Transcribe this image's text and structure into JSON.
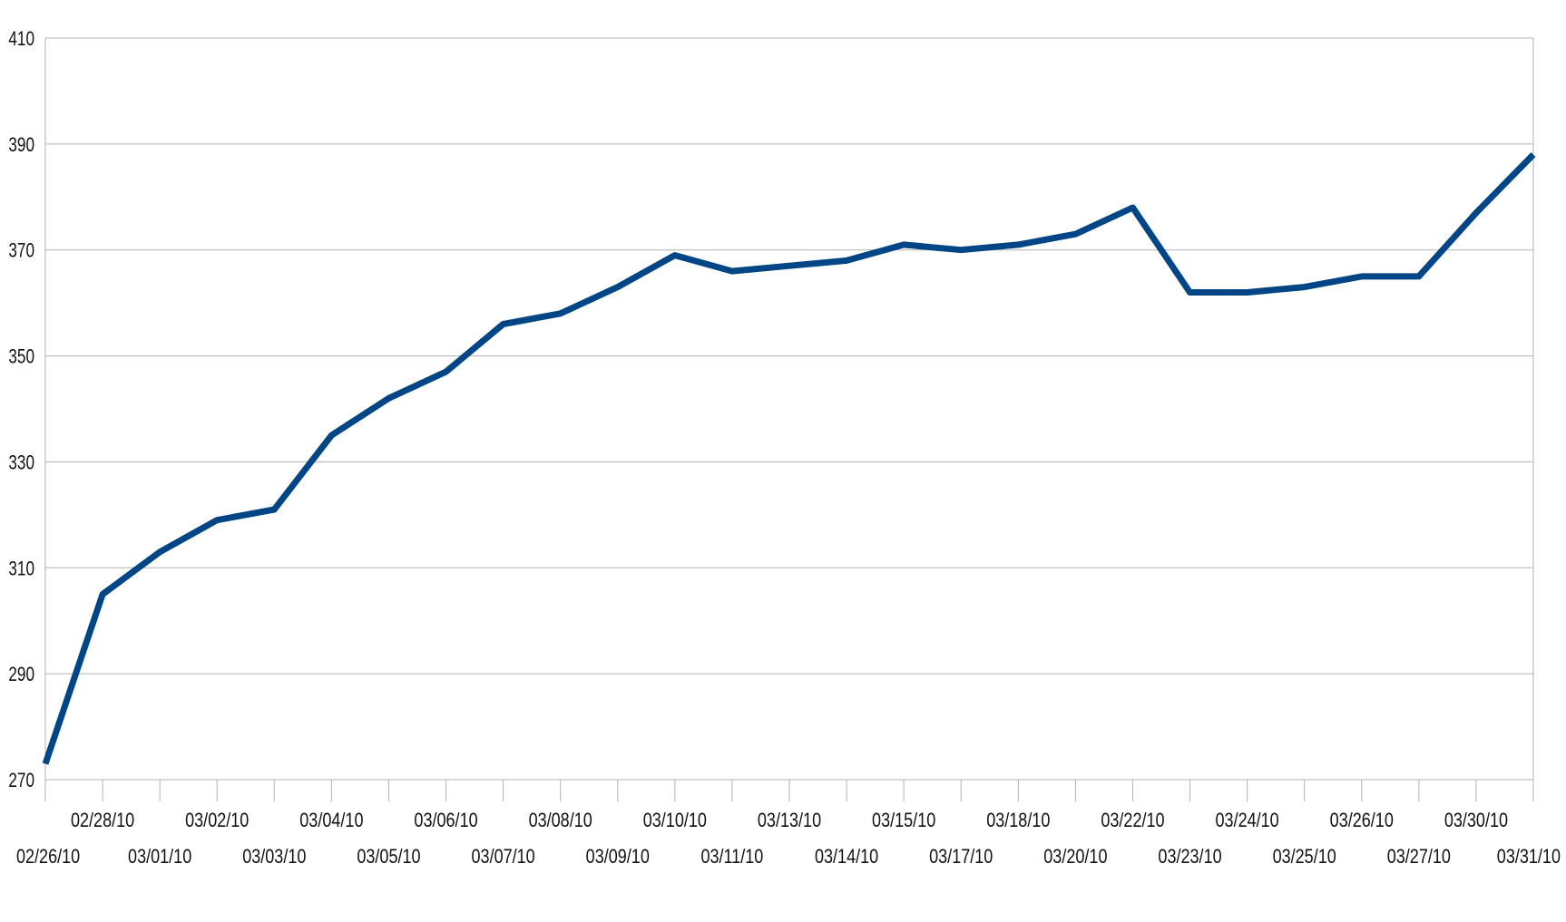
{
  "chart_data": {
    "type": "line",
    "title": "",
    "xlabel": "",
    "ylabel": "",
    "ylim": [
      270,
      410
    ],
    "y_ticks": [
      270,
      290,
      310,
      330,
      350,
      370,
      390,
      410
    ],
    "grid": true,
    "legend": "none",
    "line_color": "#004586",
    "categories": [
      "02/26/10",
      "02/28/10",
      "03/01/10",
      "03/02/10",
      "03/03/10",
      "03/04/10",
      "03/05/10",
      "03/06/10",
      "03/07/10",
      "03/08/10",
      "03/09/10",
      "03/10/10",
      "03/11/10",
      "03/13/10",
      "03/14/10",
      "03/15/10",
      "03/17/10",
      "03/18/10",
      "03/20/10",
      "03/22/10",
      "03/23/10",
      "03/24/10",
      "03/25/10",
      "03/26/10",
      "03/27/10",
      "03/30/10",
      "03/31/10"
    ],
    "series": [
      {
        "values": [
          273,
          305,
          313,
          319,
          321,
          335,
          342,
          347,
          356,
          358,
          363,
          369,
          366,
          367,
          368,
          371,
          370,
          371,
          373,
          378,
          362,
          362,
          363,
          365,
          365,
          377,
          388
        ]
      }
    ]
  }
}
